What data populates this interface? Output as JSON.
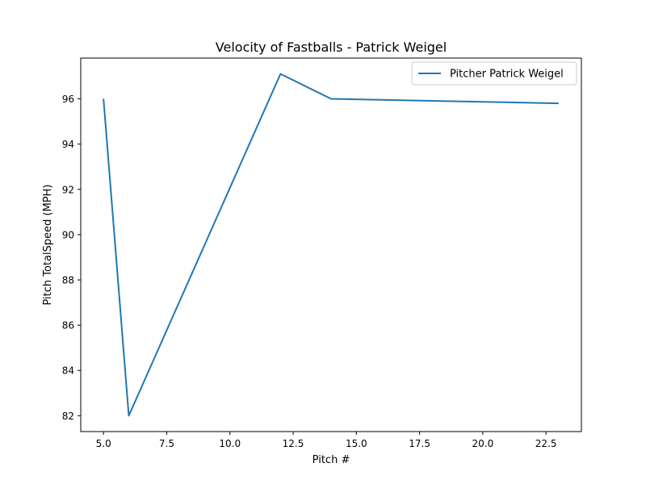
{
  "chart_data": {
    "type": "line",
    "title": "Velocity of Fastballs - Patrick Weigel",
    "xlabel": "Pitch #",
    "ylabel": "Pitch TotalSpeed (MPH)",
    "xlim": [
      4.1,
      23.9
    ],
    "ylim": [
      81.3,
      97.8
    ],
    "xticks": [
      5.0,
      7.5,
      10.0,
      12.5,
      15.0,
      17.5,
      20.0,
      22.5
    ],
    "xtick_labels": [
      "5.0",
      "7.5",
      "10.0",
      "12.5",
      "15.0",
      "17.5",
      "20.0",
      "22.5"
    ],
    "yticks": [
      82,
      84,
      86,
      88,
      90,
      92,
      94,
      96
    ],
    "ytick_labels": [
      "82",
      "84",
      "86",
      "88",
      "90",
      "92",
      "94",
      "96"
    ],
    "grid": false,
    "legend_position": "top-right",
    "series": [
      {
        "name": "Pitcher Patrick Weigel",
        "color": "#1f77b4",
        "x": [
          5,
          6,
          12,
          14,
          23
        ],
        "y": [
          96.0,
          82.0,
          97.1,
          96.0,
          95.8
        ]
      }
    ]
  }
}
